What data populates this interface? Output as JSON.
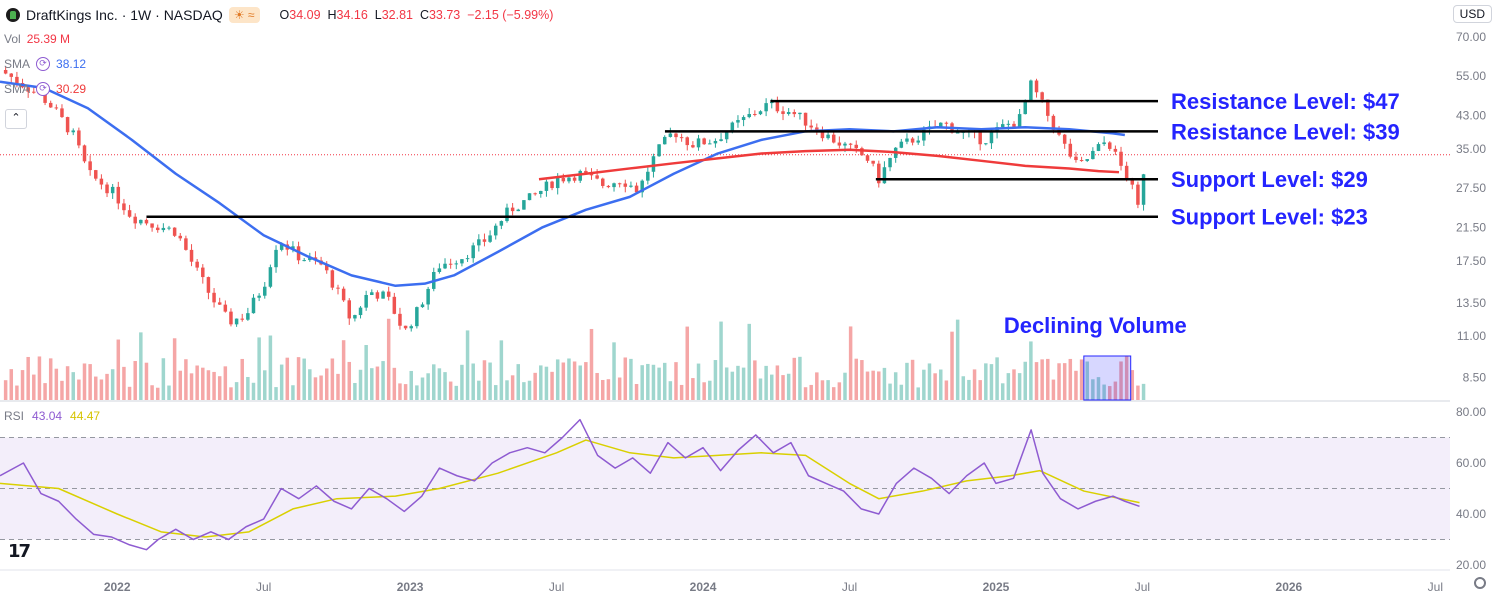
{
  "header": {
    "title": "DraftKings Inc. · 1W · NASDAQ",
    "open_label": "O",
    "open": "34.09",
    "high_label": "H",
    "high": "34.16",
    "low_label": "L",
    "low": "32.81",
    "close_label": "C",
    "close": "33.73",
    "change": "−2.15 (−5.99%)",
    "currency": "USD",
    "chip": "☀ ≈"
  },
  "indicators": {
    "vol_label": "Vol",
    "vol_value": "25.39 M",
    "sma1_label": "SMA",
    "sma1_value": "38.12",
    "sma2_label": "SMA",
    "sma2_value": "30.29",
    "rsi_label": "RSI",
    "rsi_value": "43.04",
    "rsi_ma_value": "44.47"
  },
  "colors": {
    "up": "#26a69a",
    "down": "#ef5350",
    "up_vol": "#9fd6ce",
    "down_vol": "#f5a6a6",
    "sma50": "#3c6ef0",
    "sma200": "#ef3b3b",
    "rsi": "#8e5bd1",
    "rsi_ma": "#d9d000",
    "annotation": "#2424ff",
    "level_line": "#000000",
    "highlight": "#2424ff"
  },
  "chart_data": {
    "type": "line",
    "title": "DraftKings Inc. · 1W · NASDAQ",
    "x_ticks": [
      "2022",
      "Jul",
      "2023",
      "Jul",
      "2024",
      "Jul",
      "2025",
      "Jul",
      "2026",
      "Jul"
    ],
    "x_tick_times": [
      2022.0,
      2022.5,
      2023.0,
      2023.5,
      2024.0,
      2024.5,
      2025.0,
      2025.5,
      2026.0,
      2026.5
    ],
    "xlim": [
      2021.6,
      2026.55
    ],
    "y_scale": "log",
    "ylim": [
      7.4,
      73
    ],
    "y_ticks": [
      "70.00",
      "55.00",
      "43.00",
      "35.00",
      "27.50",
      "21.50",
      "17.50",
      "13.50",
      "11.00",
      "8.50"
    ],
    "y_tick_values": [
      70,
      55,
      43,
      35,
      27.5,
      21.5,
      17.5,
      13.5,
      11,
      8.5
    ],
    "current_price": 33.73,
    "price_path": [
      [
        2021.6,
        57
      ],
      [
        2021.68,
        52
      ],
      [
        2021.76,
        47
      ],
      [
        2021.85,
        38
      ],
      [
        2021.9,
        30
      ],
      [
        2021.98,
        27
      ],
      [
        2022.05,
        23
      ],
      [
        2022.12,
        22
      ],
      [
        2022.2,
        21
      ],
      [
        2022.26,
        17
      ],
      [
        2022.32,
        14
      ],
      [
        2022.38,
        12
      ],
      [
        2022.44,
        12.5
      ],
      [
        2022.5,
        15
      ],
      [
        2022.55,
        20
      ],
      [
        2022.62,
        18
      ],
      [
        2022.7,
        17
      ],
      [
        2022.76,
        14
      ],
      [
        2022.8,
        12
      ],
      [
        2022.86,
        14.5
      ],
      [
        2022.92,
        14
      ],
      [
        2022.98,
        11.2
      ],
      [
        2023.03,
        13
      ],
      [
        2023.1,
        17
      ],
      [
        2023.18,
        18
      ],
      [
        2023.26,
        20
      ],
      [
        2023.34,
        24
      ],
      [
        2023.42,
        26
      ],
      [
        2023.5,
        29
      ],
      [
        2023.58,
        30
      ],
      [
        2023.66,
        28
      ],
      [
        2023.72,
        29
      ],
      [
        2023.78,
        27
      ],
      [
        2023.84,
        34
      ],
      [
        2023.9,
        39
      ],
      [
        2023.96,
        36
      ],
      [
        2024.04,
        37
      ],
      [
        2024.1,
        40
      ],
      [
        2024.16,
        43
      ],
      [
        2024.22,
        46
      ],
      [
        2024.3,
        44
      ],
      [
        2024.36,
        41
      ],
      [
        2024.42,
        38
      ],
      [
        2024.5,
        35
      ],
      [
        2024.56,
        33
      ],
      [
        2024.6,
        29
      ],
      [
        2024.66,
        35
      ],
      [
        2024.74,
        38
      ],
      [
        2024.82,
        41
      ],
      [
        2024.9,
        38
      ],
      [
        2024.96,
        37
      ],
      [
        2025.02,
        40
      ],
      [
        2025.08,
        42
      ],
      [
        2025.12,
        52
      ],
      [
        2025.17,
        44
      ],
      [
        2025.22,
        37
      ],
      [
        2025.28,
        31
      ],
      [
        2025.33,
        34
      ],
      [
        2025.38,
        37
      ],
      [
        2025.42,
        32
      ],
      [
        2025.46,
        28
      ],
      [
        2025.49,
        23.5
      ],
      [
        2025.51,
        33.73
      ]
    ],
    "sma50": [
      [
        2021.6,
        53
      ],
      [
        2021.75,
        51
      ],
      [
        2021.9,
        45
      ],
      [
        2022.05,
        37
      ],
      [
        2022.2,
        30
      ],
      [
        2022.35,
        25
      ],
      [
        2022.5,
        20.5
      ],
      [
        2022.65,
        18
      ],
      [
        2022.8,
        16
      ],
      [
        2022.95,
        15
      ],
      [
        2023.05,
        15.2
      ],
      [
        2023.15,
        16
      ],
      [
        2023.3,
        18.5
      ],
      [
        2023.45,
        21.5
      ],
      [
        2023.6,
        24
      ],
      [
        2023.75,
        26
      ],
      [
        2023.9,
        30
      ],
      [
        2024.05,
        34
      ],
      [
        2024.2,
        37
      ],
      [
        2024.35,
        39
      ],
      [
        2024.5,
        39.5
      ],
      [
        2024.65,
        39
      ],
      [
        2024.8,
        40
      ],
      [
        2024.95,
        39.5
      ],
      [
        2025.1,
        40
      ],
      [
        2025.25,
        39.5
      ],
      [
        2025.4,
        38.5
      ],
      [
        2025.44,
        38.12
      ]
    ],
    "sma200": [
      [
        2023.44,
        29
      ],
      [
        2023.6,
        30
      ],
      [
        2023.75,
        31
      ],
      [
        2023.9,
        32
      ],
      [
        2024.05,
        33
      ],
      [
        2024.2,
        34
      ],
      [
        2024.35,
        34.5
      ],
      [
        2024.5,
        34.8
      ],
      [
        2024.65,
        34.3
      ],
      [
        2024.8,
        33.5
      ],
      [
        2024.95,
        32.5
      ],
      [
        2025.1,
        31.5
      ],
      [
        2025.25,
        31
      ],
      [
        2025.35,
        30.5
      ],
      [
        2025.42,
        30.29
      ]
    ],
    "levels": [
      {
        "label": "Resistance Level: $47",
        "value": 47,
        "from": 2024.23
      },
      {
        "label": "Resistance Level: $39",
        "value": 39,
        "from": 2023.87
      },
      {
        "label": "Support Level: $29",
        "value": 29,
        "from": 2024.59
      },
      {
        "label": "Support Level: $23",
        "value": 23,
        "from": 2022.1
      }
    ],
    "volume_annotation": {
      "label": "Declining Volume",
      "from": 2025.3,
      "to": 2025.46
    },
    "rsi": {
      "ylim": [
        20,
        80
      ],
      "y_ticks": [
        "80.00",
        "60.00",
        "40.00",
        "20.00"
      ],
      "y_tick_values": [
        80,
        60,
        40,
        20
      ],
      "band": [
        30,
        70
      ],
      "midline": 50,
      "series": [
        [
          2021.6,
          55
        ],
        [
          2021.68,
          60
        ],
        [
          2021.74,
          48
        ],
        [
          2021.8,
          45
        ],
        [
          2021.86,
          38
        ],
        [
          2021.92,
          32
        ],
        [
          2021.98,
          31
        ],
        [
          2022.04,
          28
        ],
        [
          2022.1,
          26
        ],
        [
          2022.14,
          30
        ],
        [
          2022.2,
          34
        ],
        [
          2022.26,
          30
        ],
        [
          2022.32,
          33
        ],
        [
          2022.38,
          30
        ],
        [
          2022.44,
          35
        ],
        [
          2022.5,
          38
        ],
        [
          2022.56,
          50
        ],
        [
          2022.62,
          46
        ],
        [
          2022.68,
          51
        ],
        [
          2022.74,
          45
        ],
        [
          2022.8,
          42
        ],
        [
          2022.86,
          50
        ],
        [
          2022.92,
          46
        ],
        [
          2022.98,
          41
        ],
        [
          2023.04,
          47
        ],
        [
          2023.1,
          58
        ],
        [
          2023.16,
          55
        ],
        [
          2023.22,
          53
        ],
        [
          2023.28,
          60
        ],
        [
          2023.34,
          64
        ],
        [
          2023.4,
          66
        ],
        [
          2023.46,
          64
        ],
        [
          2023.52,
          70
        ],
        [
          2023.58,
          77
        ],
        [
          2023.64,
          63
        ],
        [
          2023.7,
          58
        ],
        [
          2023.76,
          62
        ],
        [
          2023.82,
          56
        ],
        [
          2023.88,
          68
        ],
        [
          2023.94,
          62
        ],
        [
          2024.0,
          66
        ],
        [
          2024.06,
          57
        ],
        [
          2024.12,
          65
        ],
        [
          2024.18,
          71
        ],
        [
          2024.24,
          64
        ],
        [
          2024.3,
          68
        ],
        [
          2024.36,
          55
        ],
        [
          2024.42,
          52
        ],
        [
          2024.48,
          49
        ],
        [
          2024.54,
          42
        ],
        [
          2024.6,
          40
        ],
        [
          2024.66,
          52
        ],
        [
          2024.72,
          58
        ],
        [
          2024.78,
          54
        ],
        [
          2024.84,
          48
        ],
        [
          2024.9,
          55
        ],
        [
          2024.96,
          60
        ],
        [
          2025.0,
          52
        ],
        [
          2025.06,
          54
        ],
        [
          2025.12,
          73
        ],
        [
          2025.16,
          56
        ],
        [
          2025.22,
          46
        ],
        [
          2025.28,
          42
        ],
        [
          2025.34,
          45
        ],
        [
          2025.4,
          47
        ],
        [
          2025.44,
          45
        ],
        [
          2025.49,
          43
        ]
      ],
      "ma": [
        [
          2021.6,
          52
        ],
        [
          2021.8,
          50
        ],
        [
          2022.0,
          40
        ],
        [
          2022.15,
          33
        ],
        [
          2022.3,
          31
        ],
        [
          2022.45,
          33
        ],
        [
          2022.6,
          42
        ],
        [
          2022.75,
          46
        ],
        [
          2022.95,
          47
        ],
        [
          2023.1,
          50
        ],
        [
          2023.3,
          56
        ],
        [
          2023.5,
          64
        ],
        [
          2023.6,
          69
        ],
        [
          2023.75,
          64
        ],
        [
          2023.9,
          62
        ],
        [
          2024.05,
          63
        ],
        [
          2024.2,
          64
        ],
        [
          2024.35,
          63
        ],
        [
          2024.5,
          52
        ],
        [
          2024.6,
          46
        ],
        [
          2024.75,
          49
        ],
        [
          2024.9,
          53
        ],
        [
          2025.05,
          55
        ],
        [
          2025.15,
          57
        ],
        [
          2025.3,
          49
        ],
        [
          2025.49,
          44.47
        ]
      ]
    }
  }
}
